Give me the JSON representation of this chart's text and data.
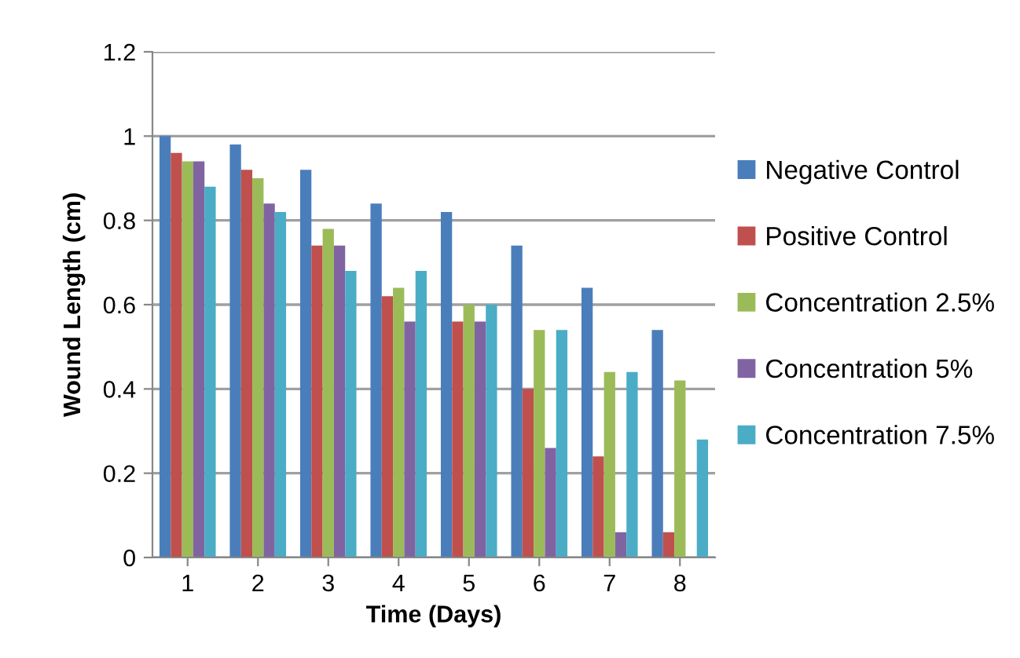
{
  "chart_data": {
    "type": "bar",
    "xlabel": "Time (Days)",
    "ylabel": "Wound Length (cm)",
    "categories": [
      "1",
      "2",
      "3",
      "4",
      "5",
      "6",
      "7",
      "8"
    ],
    "series": [
      {
        "name": "Negative Control",
        "color": "#4a7ebb",
        "values": [
          1.0,
          0.98,
          0.92,
          0.84,
          0.82,
          0.74,
          0.64,
          0.54
        ]
      },
      {
        "name": "Positive Control",
        "color": "#c0504d",
        "values": [
          0.96,
          0.92,
          0.74,
          0.62,
          0.56,
          0.4,
          0.24,
          0.06
        ]
      },
      {
        "name": "Concentration 2.5%",
        "color": "#9bbb59",
        "values": [
          0.94,
          0.9,
          0.78,
          0.64,
          0.6,
          0.54,
          0.44,
          0.42
        ]
      },
      {
        "name": "Concentration 5%",
        "color": "#8064a2",
        "values": [
          0.94,
          0.84,
          0.74,
          0.56,
          0.56,
          0.26,
          0.06,
          null
        ]
      },
      {
        "name": "Concentration 7.5%",
        "color": "#4bacc6",
        "values": [
          0.88,
          0.82,
          0.68,
          0.68,
          0.6,
          0.54,
          0.44,
          0.28
        ]
      }
    ],
    "ylim": [
      0,
      1.2
    ],
    "yticks": [
      0,
      0.2,
      0.4,
      0.6,
      0.8,
      1,
      1.2
    ],
    "grid": "y",
    "legend": "right"
  }
}
